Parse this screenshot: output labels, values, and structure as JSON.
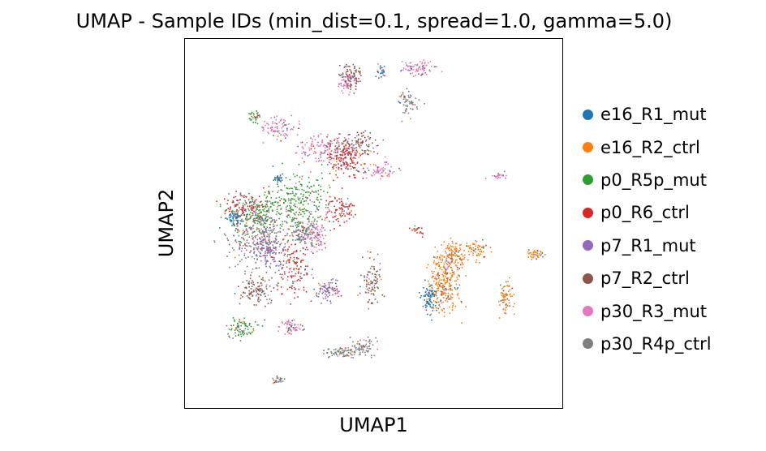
{
  "chart_data": {
    "type": "scatter",
    "title": "UMAP - Sample IDs (min_dist=0.1, spread=1.0, gamma=5.0)",
    "xlabel": "UMAP1",
    "ylabel": "UMAP2",
    "grid": false,
    "ticks": false,
    "legend_position": "right",
    "series": [
      {
        "name": "e16_R1_mut",
        "color": "#1f77b4"
      },
      {
        "name": "e16_R2_ctrl",
        "color": "#ff7f0e"
      },
      {
        "name": "p0_R5p_mut",
        "color": "#2ca02c"
      },
      {
        "name": "p0_R6_ctrl",
        "color": "#d62728"
      },
      {
        "name": "p7_R1_mut",
        "color": "#9467bd"
      },
      {
        "name": "p7_R2_ctrl",
        "color": "#8c564b"
      },
      {
        "name": "p30_R3_mut",
        "color": "#e377c2"
      },
      {
        "name": "p30_R4p_ctrl",
        "color": "#7f7f7f"
      }
    ]
  }
}
